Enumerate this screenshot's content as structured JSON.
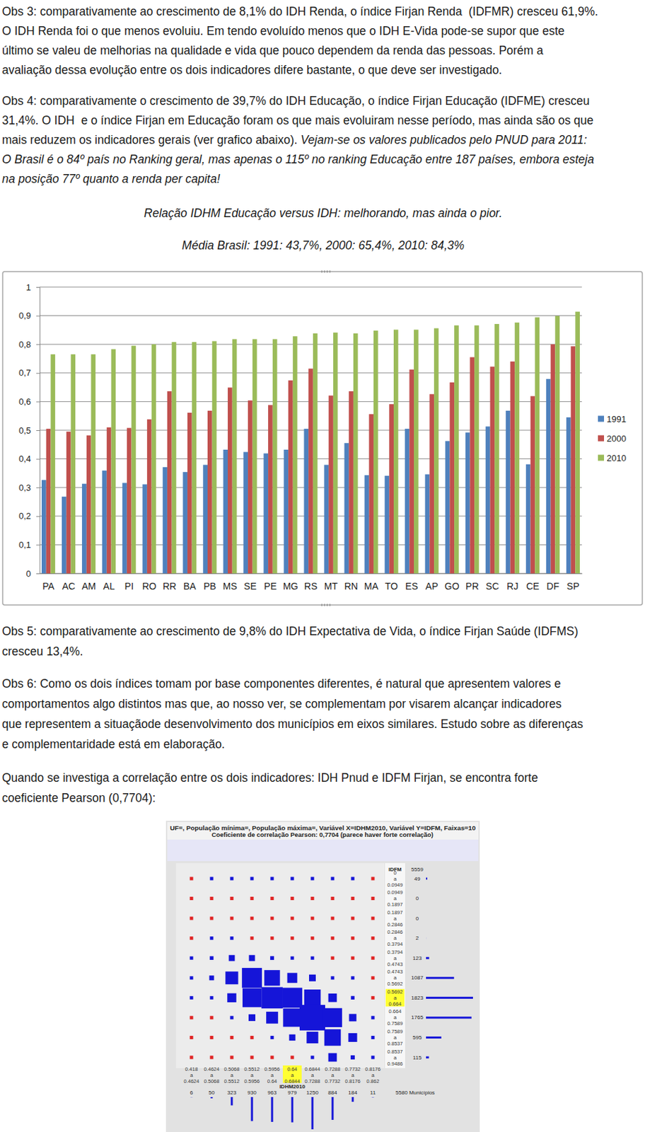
{
  "paragraphs": [
    {
      "lines": [
        [
          {
            "text": "Obs 3: comparativamente ao crescimento de 8,1% do IDH Renda, o índice Firjan Renda  (IDFMR) cresceu 61,9%."
          }
        ],
        [
          {
            "text": "O IDH Renda foi o que menos evoluiu. Em tendo evoluído menos que o IDH E-Vida pode-se supor que este"
          }
        ],
        [
          {
            "text": "último se valeu de melhorias na qualidade e vida que pouco dependem da renda das pessoas. Porém a"
          }
        ],
        [
          {
            "text": "avaliação dessa evolução entre os dois indicadores difere bastante, o que deve ser investigado."
          }
        ]
      ]
    },
    {
      "lines": [
        [
          {
            "text": "Obs 4: comparativamente o crescimento de 39,7% do IDH Educação, o índice Firjan Educação (IDFME) cresceu"
          }
        ],
        [
          {
            "text": "31,4%. O IDH  e o índice Firjan em Educação foram os que mais evoluiram nesse período, mas ainda são os que"
          }
        ],
        [
          {
            "text": "mais reduzem os indicadores gerais (ver grafico abaixo). "
          },
          {
            "text": "Vejam-se os valores publicados pelo PNUD para 2011:",
            "italic": true
          }
        ],
        [
          {
            "text": "O Brasil é o 84º país no Ranking geral, mas apenas o 115º no ranking Educação entre 187 países, embora esteja",
            "italic": true
          }
        ],
        [
          {
            "text": "na posição 77º quanto a renda per capita!",
            "italic": true
          }
        ]
      ]
    },
    {
      "lines": [
        [
          {
            "text": "Obs 5: comparativamente ao crescimento de 9,8% do IDH Expectativa de Vida, o índice Firjan Saúde (IDFMS)"
          }
        ],
        [
          {
            "text": "cresceu 13,4%."
          }
        ]
      ]
    },
    {
      "lines": [
        [
          {
            "text": "Obs 6: Como os dois índices tomam por base componentes diferentes, é natural que apresentem valores e"
          }
        ],
        [
          {
            "text": "comportamentos algo distintos mas que, ao nosso ver, se complementam por visarem alcançar indicadores"
          }
        ],
        [
          {
            "text": "que representem a situaçãode desenvolvimento dos municípios em eixos similares. Estudo sobre as diferenças"
          }
        ],
        [
          {
            "text": "e complementaridade está em elaboração."
          }
        ]
      ]
    },
    {
      "lines": [
        [
          {
            "text": "Quando se investiga a correlação entre os dois indicadores: IDH Pnud e IDFM Firjan, se encontra forte"
          }
        ],
        [
          {
            "text": "coeficiente Pearson (0,7704):"
          }
        ]
      ]
    }
  ],
  "chart_data": {
    "type": "bar",
    "title": "Relação IDHM Educação versus IDH: melhorando, mas ainda o pior.",
    "subtitle": "Média Brasil: 1991: 43,7%, 2000: 65,4%, 2010: 84,3%",
    "categories": [
      "PA",
      "AC",
      "AM",
      "AL",
      "PI",
      "RO",
      "RR",
      "BA",
      "PB",
      "MS",
      "SE",
      "PE",
      "MG",
      "RS",
      "MT",
      "RN",
      "MA",
      "TO",
      "ES",
      "AP",
      "GO",
      "PR",
      "SC",
      "RJ",
      "CE",
      "DF",
      "SP"
    ],
    "series": [
      {
        "name": "1991",
        "color": "#4f81bd",
        "values": [
          0.326,
          0.268,
          0.313,
          0.359,
          0.316,
          0.311,
          0.371,
          0.354,
          0.379,
          0.432,
          0.424,
          0.419,
          0.432,
          0.505,
          0.379,
          0.455,
          0.343,
          0.341,
          0.505,
          0.346,
          0.462,
          0.492,
          0.513,
          0.568,
          0.381,
          0.679,
          0.545
        ]
      },
      {
        "name": "2000",
        "color": "#c0504d",
        "values": [
          0.505,
          0.495,
          0.482,
          0.51,
          0.508,
          0.538,
          0.636,
          0.561,
          0.568,
          0.649,
          0.604,
          0.588,
          0.674,
          0.715,
          0.621,
          0.636,
          0.556,
          0.591,
          0.712,
          0.626,
          0.667,
          0.755,
          0.722,
          0.74,
          0.619,
          0.8,
          0.793
        ]
      },
      {
        "name": "2010",
        "color": "#9bbb59",
        "values": [
          0.765,
          0.765,
          0.765,
          0.783,
          0.795,
          0.8,
          0.808,
          0.808,
          0.811,
          0.818,
          0.818,
          0.818,
          0.828,
          0.838,
          0.841,
          0.838,
          0.848,
          0.851,
          0.851,
          0.856,
          0.866,
          0.866,
          0.871,
          0.876,
          0.894,
          0.899,
          0.914
        ]
      }
    ],
    "ylim": [
      0,
      1
    ],
    "yticks": [
      0,
      {
        "value": 0.1,
        "label": "0,1"
      },
      {
        "value": 0.2,
        "label": "0,2"
      },
      {
        "value": 0.3,
        "label": "0,3"
      },
      {
        "value": 0.4,
        "label": "0,4"
      },
      {
        "value": 0.5,
        "label": "0,5"
      },
      {
        "value": 0.6,
        "label": "0,6"
      },
      {
        "value": 0.7,
        "label": "0,7"
      },
      {
        "value": 0.8,
        "label": "0,8"
      },
      {
        "value": 0.9,
        "label": "0,9"
      },
      1
    ],
    "grid": true,
    "legend": "right"
  },
  "correlation": {
    "header": [
      "UF=, População mínima=, População máxima=, Variável X=IDHM2010, Variável Y=IDFM, Faixas=10",
      "Coeficiente de correlação Pearson: 0,7704 (parece haver forte correlação)"
    ],
    "x_name": "IDHM2010",
    "y_name": "IDFM",
    "range_word": "a",
    "x_bins": [
      0.418,
      0.4624,
      0.5068,
      0.5512,
      0.5956,
      0.64,
      0.6844,
      0.7288,
      0.7732,
      0.8176,
      0.862
    ],
    "y_bins": [
      0,
      0.0949,
      0.1897,
      0.2846,
      0.3794,
      0.4743,
      0.5692,
      0.664,
      0.7589,
      0.8537,
      0.9486
    ],
    "x_counts": [
      6,
      50,
      323,
      930,
      963,
      979,
      1250,
      884,
      184,
      11
    ],
    "y_counts": [
      49,
      0,
      0,
      2,
      123,
      1087,
      1823,
      1765,
      595,
      115
    ],
    "y_total": 5559,
    "x_total_label": "5580 Municípios",
    "highlight_bins": {
      "x": 5,
      "y": 6
    },
    "cells": [
      [
        0,
        1,
        4,
        10,
        10,
        9,
        9,
        5,
        1,
        0
      ],
      [
        0,
        0,
        0,
        0,
        0,
        0,
        0,
        0,
        0,
        0
      ],
      [
        0,
        0,
        0,
        0,
        0,
        0,
        0,
        0,
        0,
        0
      ],
      [
        0,
        1,
        1,
        0,
        0,
        0,
        0,
        0,
        0,
        0
      ],
      [
        2,
        15,
        40,
        40,
        16,
        7,
        3,
        0,
        0,
        0
      ],
      [
        3,
        25,
        180,
        440,
        270,
        110,
        50,
        8,
        1,
        0
      ],
      [
        1,
        8,
        90,
        390,
        500,
        440,
        300,
        80,
        14,
        0
      ],
      [
        0,
        0,
        8,
        50,
        155,
        370,
        720,
        400,
        60,
        2
      ],
      [
        0,
        0,
        0,
        0,
        12,
        43,
        150,
        300,
        85,
        5
      ],
      [
        0,
        0,
        0,
        0,
        0,
        0,
        12,
        80,
        19,
        4
      ]
    ]
  }
}
